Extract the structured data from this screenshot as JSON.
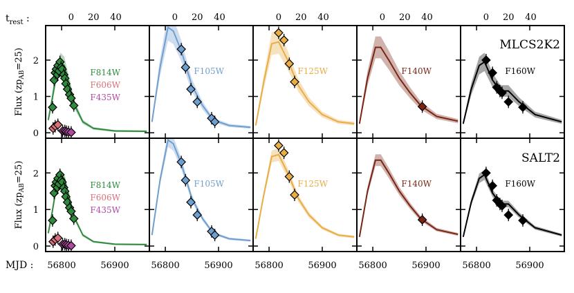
{
  "chart_data": {
    "type": "scatter",
    "title": "",
    "top_axis_label": "t",
    "top_axis_label_sub": "rest",
    "top_axis_label_suffix": " :",
    "top_ticks": [
      "0",
      "20",
      "40"
    ],
    "bottom_axis_label": "MJD :",
    "bottom_ticks_first": [
      "56800",
      "56900"
    ],
    "bottom_ticks": [
      "56800",
      "56900"
    ],
    "ylabel": "Flux (zp",
    "ylabel_sub": "AB",
    "ylabel_suffix": "=25)",
    "y_ticks": [
      "0",
      "1",
      "2"
    ],
    "rows": [
      {
        "model": "MLCS2K2"
      },
      {
        "model": "SALT2"
      }
    ],
    "panels": [
      {
        "filter": "F814W",
        "color": "#2e8b3e",
        "extra_labels": [
          {
            "text": "F606W",
            "color": "#d9707a"
          },
          {
            "text": "F435W",
            "color": "#b04aa0"
          }
        ],
        "points": [
          [
            56783,
            0.7
          ],
          [
            56786,
            1.45
          ],
          [
            56788,
            1.65
          ],
          [
            56790,
            1.75
          ],
          [
            56792,
            1.6
          ],
          [
            56793,
            1.85
          ],
          [
            56795,
            1.7
          ],
          [
            56797,
            1.95
          ],
          [
            56799,
            1.8
          ],
          [
            56801,
            1.75
          ],
          [
            56804,
            1.6
          ],
          [
            56806,
            1.5
          ],
          [
            56808,
            1.35
          ],
          [
            56811,
            1.2
          ],
          [
            56815,
            1.05
          ],
          [
            56818,
            0.95
          ],
          [
            56823,
            0.75
          ]
        ],
        "points_b": [
          [
            56784,
            0.12
          ],
          [
            56788,
            0.18
          ],
          [
            56793,
            0.22
          ]
        ],
        "points_c": [
          [
            56802,
            0.05
          ],
          [
            56806,
            0.05
          ],
          [
            56809,
            0.03
          ],
          [
            56813,
            0.02
          ],
          [
            56818,
            0.01
          ]
        ],
        "peak_label": "",
        "model_curve": [
          [
            56775,
            0.35
          ],
          [
            56782,
            0.9
          ],
          [
            56790,
            1.6
          ],
          [
            56798,
            1.95
          ],
          [
            56805,
            1.85
          ],
          [
            56815,
            1.3
          ],
          [
            56825,
            0.75
          ],
          [
            56840,
            0.3
          ],
          [
            56860,
            0.12
          ],
          [
            56900,
            0.05
          ],
          [
            56960,
            0.04
          ]
        ]
      },
      {
        "filter": "F105W",
        "color": "#6f9fd0",
        "extra_labels": [],
        "points": [
          [
            56830,
            2.3
          ],
          [
            56838,
            1.8
          ],
          [
            56848,
            1.2
          ],
          [
            56860,
            0.85
          ],
          [
            56887,
            0.4
          ],
          [
            56893,
            0.3
          ]
        ],
        "points_b": [],
        "points_c": [],
        "peak_label": "",
        "model_curve": [
          [
            56775,
            0.3
          ],
          [
            56790,
            1.8
          ],
          [
            56805,
            2.9
          ],
          [
            56815,
            2.8
          ],
          [
            56830,
            2.25
          ],
          [
            56850,
            1.3
          ],
          [
            56870,
            0.75
          ],
          [
            56890,
            0.35
          ],
          [
            56920,
            0.2
          ],
          [
            56960,
            0.15
          ]
        ]
      },
      {
        "filter": "F125W",
        "color": "#e8ad45",
        "extra_labels": [],
        "points": [
          [
            56818,
            2.75
          ],
          [
            56828,
            2.55
          ],
          [
            56838,
            1.9
          ],
          [
            56848,
            1.4
          ]
        ],
        "points_b": [],
        "points_c": [],
        "peak_label": "",
        "model_curve": [
          [
            56775,
            0.2
          ],
          [
            56790,
            1.4
          ],
          [
            56805,
            2.45
          ],
          [
            56818,
            2.5
          ],
          [
            56835,
            2.0
          ],
          [
            56855,
            1.3
          ],
          [
            56875,
            0.85
          ],
          [
            56900,
            0.5
          ],
          [
            56930,
            0.3
          ],
          [
            56960,
            0.25
          ]
        ]
      },
      {
        "filter": "F140W",
        "color": "#7a2414",
        "extra_labels": [],
        "points": [
          [
            56893,
            0.72
          ]
        ],
        "points_b": [],
        "points_c": [],
        "peak_label": "",
        "model_curve": [
          [
            56775,
            0.25
          ],
          [
            56790,
            1.5
          ],
          [
            56805,
            2.35
          ],
          [
            56815,
            2.35
          ],
          [
            56830,
            2.0
          ],
          [
            56850,
            1.5
          ],
          [
            56870,
            1.1
          ],
          [
            56890,
            0.75
          ],
          [
            56920,
            0.45
          ],
          [
            56960,
            0.32
          ]
        ]
      },
      {
        "filter": "F160W",
        "color": "#000000",
        "extra_labels": [],
        "points": [
          [
            56818,
            2.0
          ],
          [
            56830,
            1.65
          ],
          [
            56838,
            1.25
          ],
          [
            56844,
            1.15
          ],
          [
            56848,
            1.1
          ],
          [
            56860,
            0.85
          ],
          [
            56887,
            0.7
          ]
        ],
        "points_b": [],
        "points_c": [],
        "peak_label": "",
        "model_curve": [
          [
            56775,
            0.25
          ],
          [
            56790,
            1.2
          ],
          [
            56805,
            1.85
          ],
          [
            56815,
            1.95
          ],
          [
            56830,
            1.45
          ],
          [
            56845,
            1.15
          ],
          [
            56860,
            1.15
          ],
          [
            56880,
            0.85
          ],
          [
            56910,
            0.5
          ],
          [
            56960,
            0.3
          ]
        ]
      }
    ],
    "xlim": [
      56770,
      56965
    ],
    "ylim": [
      -0.15,
      2.95
    ],
    "trest_zero_mjd": 56818,
    "trest_scale": 2.1
  }
}
